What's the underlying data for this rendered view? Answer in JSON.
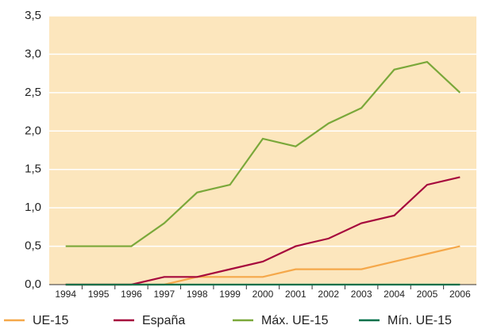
{
  "chart_data": {
    "type": "line",
    "categories": [
      "1994",
      "1995",
      "1996",
      "1997",
      "1998",
      "1999",
      "2000",
      "2001",
      "2002",
      "2003",
      "2004",
      "2005",
      "2006"
    ],
    "series": [
      {
        "name": "UE-15",
        "color": "#f5a84a",
        "values": [
          0,
          0,
          0,
          0,
          0.1,
          0.1,
          0.1,
          0.2,
          0.2,
          0.2,
          0.3,
          0.4,
          0.5
        ]
      },
      {
        "name": "España",
        "color": "#a6093d",
        "values": [
          0,
          0,
          0,
          0.1,
          0.1,
          0.2,
          0.3,
          0.5,
          0.6,
          0.8,
          0.9,
          1.3,
          1.4
        ]
      },
      {
        "name": "Máx. UE-15",
        "color": "#7aa83a",
        "values": [
          0.5,
          0.5,
          0.5,
          0.8,
          1.2,
          1.3,
          1.9,
          1.8,
          2.1,
          2.3,
          2.8,
          2.9,
          2.5
        ]
      },
      {
        "name": "Mín. UE-15",
        "color": "#00704a",
        "values": [
          0,
          0,
          0,
          0,
          0,
          0,
          0,
          0,
          0,
          0,
          0,
          0,
          0
        ]
      }
    ],
    "ylim": [
      0,
      3.5
    ],
    "yticks": [
      {
        "value": 0,
        "label": "0,0"
      },
      {
        "value": 0.5,
        "label": "0,5"
      },
      {
        "value": 1,
        "label": "1,0"
      },
      {
        "value": 1.5,
        "label": "1,5"
      },
      {
        "value": 2,
        "label": "2,0"
      },
      {
        "value": 2.5,
        "label": "2,5"
      },
      {
        "value": 3,
        "label": "3,0"
      },
      {
        "value": 3.5,
        "label": "3,5"
      }
    ],
    "grid": true,
    "background": "#fce6bd"
  }
}
